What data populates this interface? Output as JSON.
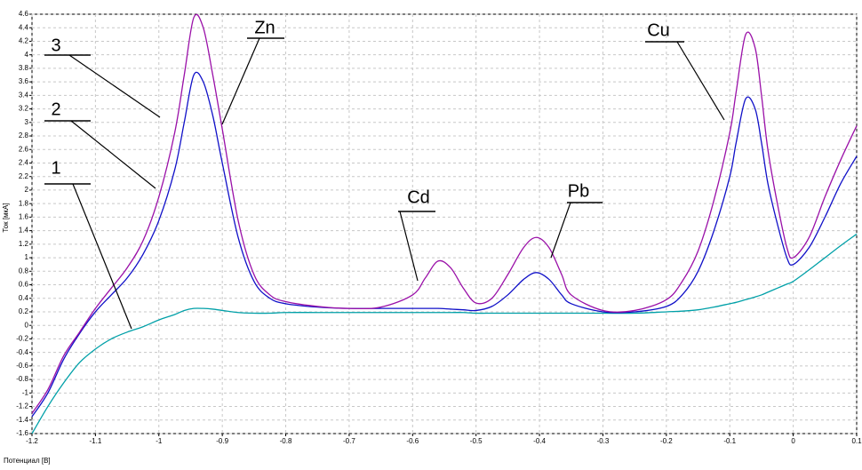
{
  "chart_data": {
    "type": "line",
    "x_label": "Потенциал [В]",
    "y_label": "Ток [мкА]",
    "x": [
      -1.2,
      -1.175,
      -1.15,
      -1.125,
      -1.1,
      -1.075,
      -1.05,
      -1.025,
      -1.0,
      -0.975,
      -0.96,
      -0.945,
      -0.93,
      -0.915,
      -0.9,
      -0.875,
      -0.85,
      -0.825,
      -0.8,
      -0.75,
      -0.7,
      -0.65,
      -0.6,
      -0.58,
      -0.56,
      -0.54,
      -0.52,
      -0.5,
      -0.475,
      -0.45,
      -0.425,
      -0.405,
      -0.385,
      -0.365,
      -0.35,
      -0.3,
      -0.25,
      -0.2,
      -0.175,
      -0.15,
      -0.125,
      -0.1,
      -0.09,
      -0.075,
      -0.06,
      -0.05,
      -0.04,
      -0.025,
      -0.01,
      0,
      0.025,
      0.05,
      0.075,
      0.1
    ],
    "series": [
      {
        "name": "1",
        "color": "#00a0a8",
        "values": [
          -1.6,
          -1.2,
          -0.85,
          -0.55,
          -0.35,
          -0.2,
          -0.1,
          -0.02,
          0.08,
          0.16,
          0.22,
          0.25,
          0.25,
          0.24,
          0.22,
          0.19,
          0.18,
          0.18,
          0.19,
          0.19,
          0.19,
          0.19,
          0.19,
          0.19,
          0.19,
          0.19,
          0.19,
          0.18,
          0.18,
          0.18,
          0.18,
          0.18,
          0.18,
          0.18,
          0.18,
          0.18,
          0.18,
          0.2,
          0.21,
          0.23,
          0.27,
          0.32,
          0.34,
          0.38,
          0.42,
          0.45,
          0.49,
          0.55,
          0.61,
          0.65,
          0.82,
          1.0,
          1.18,
          1.35
        ]
      },
      {
        "name": "2",
        "color": "#1010c8",
        "values": [
          -1.35,
          -1.0,
          -0.5,
          -0.12,
          0.2,
          0.45,
          0.7,
          1.05,
          1.55,
          2.3,
          3.0,
          3.7,
          3.6,
          3.1,
          2.4,
          1.3,
          0.65,
          0.4,
          0.32,
          0.27,
          0.25,
          0.25,
          0.25,
          0.25,
          0.25,
          0.24,
          0.23,
          0.22,
          0.28,
          0.45,
          0.68,
          0.78,
          0.68,
          0.45,
          0.32,
          0.2,
          0.2,
          0.28,
          0.45,
          0.8,
          1.4,
          2.2,
          2.7,
          3.35,
          3.2,
          2.7,
          2.1,
          1.5,
          1.0,
          0.9,
          1.15,
          1.6,
          2.1,
          2.5
        ]
      },
      {
        "name": "3",
        "color": "#9a10a8",
        "values": [
          -1.3,
          -0.95,
          -0.45,
          -0.1,
          0.25,
          0.55,
          0.85,
          1.25,
          1.9,
          2.85,
          3.7,
          4.55,
          4.4,
          3.7,
          2.9,
          1.55,
          0.75,
          0.45,
          0.35,
          0.28,
          0.25,
          0.27,
          0.45,
          0.7,
          0.95,
          0.85,
          0.55,
          0.33,
          0.4,
          0.75,
          1.15,
          1.3,
          1.15,
          0.75,
          0.45,
          0.22,
          0.22,
          0.38,
          0.65,
          1.1,
          1.85,
          2.85,
          3.45,
          4.3,
          4.1,
          3.4,
          2.6,
          1.8,
          1.15,
          1.0,
          1.3,
          1.9,
          2.45,
          2.95
        ]
      }
    ],
    "annotations": [
      "Zn",
      "Cd",
      "Pb",
      "Cu"
    ],
    "xlim": [
      -1.2,
      0.1
    ],
    "ylim": [
      -1.6,
      4.6
    ],
    "xticks": [
      -1.2,
      -1.1,
      -1,
      -0.9,
      -0.8,
      -0.7,
      -0.6,
      -0.5,
      -0.4,
      -0.3,
      -0.2,
      -0.1,
      0,
      0.1
    ],
    "yticks": [
      -1.6,
      -1.4,
      -1.2,
      -1,
      -0.8,
      -0.6,
      -0.4,
      -0.2,
      0,
      0.2,
      0.4,
      0.6,
      0.8,
      1,
      1.2,
      1.4,
      1.6,
      1.8,
      2,
      2.2,
      2.4,
      2.6,
      2.8,
      3,
      3.2,
      3.4,
      3.6,
      3.8,
      4,
      4.2,
      4.4,
      4.6
    ],
    "grid": true
  }
}
